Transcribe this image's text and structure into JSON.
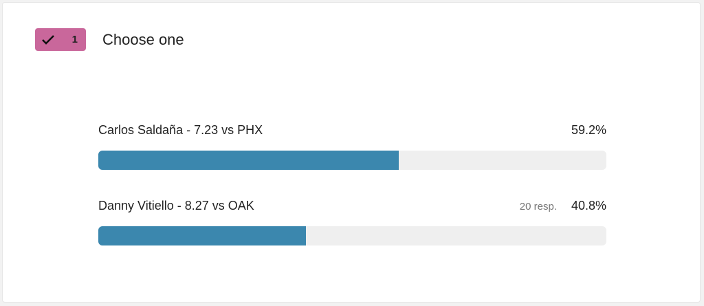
{
  "badge": {
    "number": 1
  },
  "question": "Choose one",
  "xlim": [
    0,
    100
  ],
  "bar_color": "#3b87ae",
  "options": [
    {
      "label": "Carlos Saldaña - 7.23 vs PHX",
      "value": 59.2,
      "value_label": "59.2%"
    },
    {
      "label": "Danny Vitiello - 8.27 vs OAK",
      "responses": "20 resp.",
      "value": 40.8,
      "value_label": "40.8%"
    }
  ]
}
